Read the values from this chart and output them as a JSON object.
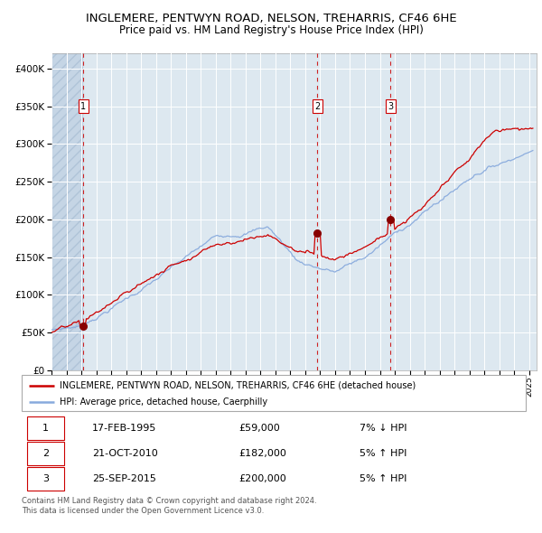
{
  "title": "INGLEMERE, PENTWYN ROAD, NELSON, TREHARRIS, CF46 6HE",
  "subtitle": "Price paid vs. HM Land Registry's House Price Index (HPI)",
  "legend_property": "INGLEMERE, PENTWYN ROAD, NELSON, TREHARRIS, CF46 6HE (detached house)",
  "legend_hpi": "HPI: Average price, detached house, Caerphilly",
  "transactions": [
    {
      "num": 1,
      "date": "17-FEB-1995",
      "price": 59000,
      "pct": "7%",
      "dir": "↓",
      "year_x": 1995.12
    },
    {
      "num": 2,
      "date": "21-OCT-2010",
      "price": 182000,
      "pct": "5%",
      "dir": "↑",
      "year_x": 2010.8
    },
    {
      "num": 3,
      "date": "25-SEP-2015",
      "price": 200000,
      "pct": "5%",
      "dir": "↑",
      "year_x": 2015.72
    }
  ],
  "footnote1": "Contains HM Land Registry data © Crown copyright and database right 2024.",
  "footnote2": "This data is licensed under the Open Government Licence v3.0.",
  "property_color": "#cc0000",
  "hpi_color": "#88aadd",
  "plot_bg_color": "#dde8f0",
  "grid_color": "#ffffff",
  "xmin": 1993.0,
  "xmax": 2025.5,
  "ymin": 0,
  "ymax": 420000,
  "yticks": [
    0,
    50000,
    100000,
    150000,
    200000,
    250000,
    300000,
    350000,
    400000
  ]
}
